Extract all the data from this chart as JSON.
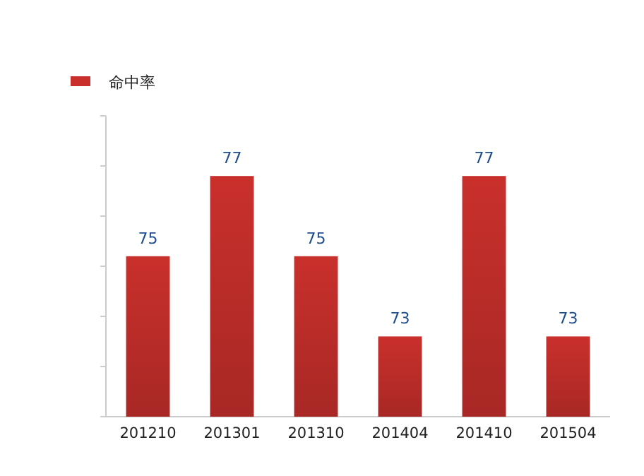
{
  "chart_data": {
    "type": "bar",
    "categories": [
      "201210",
      "201301",
      "201310",
      "201404",
      "201410",
      "201504"
    ],
    "series": [
      {
        "name": "命中率",
        "color": "#c9302c",
        "values": [
          75,
          77,
          75,
          73,
          77,
          73
        ]
      }
    ],
    "ylim": [
      71,
      78.5
    ],
    "yticks": [
      {
        "value": 71,
        "label": null
      },
      {
        "value": 72.25,
        "label": null
      },
      {
        "value": 73.5,
        "label": null
      },
      {
        "value": 74.75,
        "label": null
      },
      {
        "value": 76,
        "label": null
      },
      {
        "value": 77.25,
        "label": null
      },
      {
        "value": 78.5,
        "label": null
      }
    ],
    "data_labels": true,
    "legend": "top left",
    "grid": false
  }
}
